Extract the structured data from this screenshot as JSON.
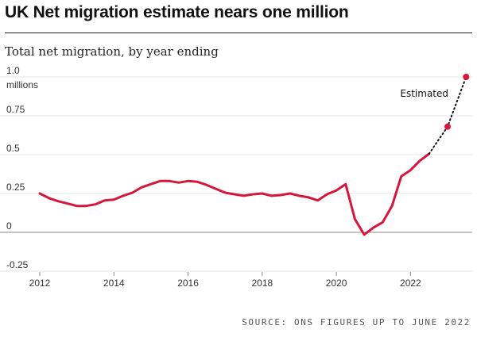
{
  "header": {
    "title": "UK Net migration estimate nears one million",
    "subtitle": "Total net migration, by year ending"
  },
  "source": "SOURCE: ONS FIGURES UP TO JUNE 2022",
  "chart_data": {
    "type": "line",
    "title": "UK Net migration estimate nears one million",
    "subtitle": "Total net migration, by year ending",
    "xlabel": "",
    "ylabel": "millions",
    "xlim": [
      2012,
      2023.6
    ],
    "ylim": [
      -0.25,
      1.0
    ],
    "yticks": [
      -0.25,
      0,
      0.25,
      0.5,
      0.75,
      1.0
    ],
    "ytick_labels": [
      "-0.25",
      "0",
      "0.25",
      "0.5",
      "0.75",
      "1.0"
    ],
    "xticks": [
      2012,
      2014,
      2016,
      2018,
      2020,
      2022
    ],
    "xtick_labels": [
      "2012",
      "2014",
      "2016",
      "2018",
      "2020",
      "2022"
    ],
    "y_unit_label": "millions",
    "grid": "horizontal",
    "colors": {
      "line": "#d6173b",
      "grid": "#e6e6e6",
      "zero": "#888888",
      "estimate": "#111111"
    },
    "series": [
      {
        "values": [
          [
            2012.0,
            0.25
          ],
          [
            2012.25,
            0.22
          ],
          [
            2012.5,
            0.2
          ],
          [
            2012.75,
            0.185
          ],
          [
            2013.0,
            0.17
          ],
          [
            2013.25,
            0.17
          ],
          [
            2013.5,
            0.18
          ],
          [
            2013.75,
            0.205
          ],
          [
            2014.0,
            0.21
          ],
          [
            2014.25,
            0.235
          ],
          [
            2014.5,
            0.255
          ],
          [
            2014.75,
            0.29
          ],
          [
            2015.0,
            0.31
          ],
          [
            2015.25,
            0.33
          ],
          [
            2015.5,
            0.33
          ],
          [
            2015.75,
            0.32
          ],
          [
            2016.0,
            0.33
          ],
          [
            2016.25,
            0.325
          ],
          [
            2016.5,
            0.305
          ],
          [
            2016.75,
            0.28
          ],
          [
            2017.0,
            0.255
          ],
          [
            2017.25,
            0.245
          ],
          [
            2017.5,
            0.235
          ],
          [
            2017.75,
            0.245
          ],
          [
            2018.0,
            0.25
          ],
          [
            2018.25,
            0.235
          ],
          [
            2018.5,
            0.24
          ],
          [
            2018.75,
            0.25
          ],
          [
            2019.0,
            0.235
          ],
          [
            2019.25,
            0.225
          ],
          [
            2019.5,
            0.205
          ],
          [
            2019.75,
            0.245
          ],
          [
            2020.0,
            0.27
          ],
          [
            2020.25,
            0.31
          ],
          [
            2020.5,
            0.085
          ],
          [
            2020.75,
            -0.015
          ],
          [
            2021.0,
            0.03
          ],
          [
            2021.25,
            0.065
          ],
          [
            2021.5,
            0.17
          ],
          [
            2021.75,
            0.36
          ],
          [
            2022.0,
            0.4
          ],
          [
            2022.25,
            0.46
          ],
          [
            2022.5,
            0.505
          ]
        ]
      }
    ],
    "estimated": {
      "label": "Estimated",
      "points": [
        [
          2022.5,
          0.505
        ],
        [
          2023.0,
          0.68
        ],
        [
          2023.5,
          1.0
        ]
      ],
      "markers": [
        [
          2023.0,
          0.68
        ],
        [
          2023.5,
          1.0
        ]
      ]
    }
  }
}
